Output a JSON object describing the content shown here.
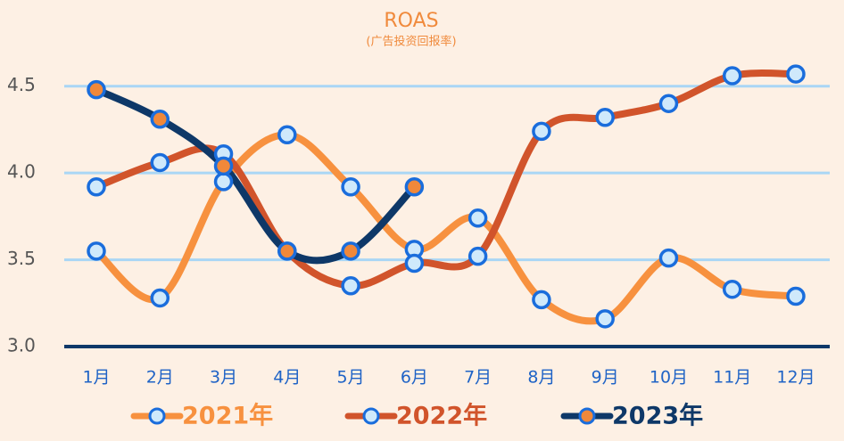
{
  "chart_data": {
    "type": "line",
    "title": "ROAS",
    "subtitle": "(广告投资回报率)",
    "categories": [
      "1月",
      "2月",
      "3月",
      "4月",
      "5月",
      "6月",
      "7月",
      "8月",
      "9月",
      "10月",
      "11月",
      "12月"
    ],
    "series": [
      {
        "name": "2021年",
        "color": "#f7913f",
        "marker_fill": "#cfe9fb",
        "values": [
          3.55,
          3.28,
          3.95,
          4.22,
          3.92,
          3.56,
          3.74,
          3.27,
          3.16,
          3.51,
          3.33,
          3.29
        ]
      },
      {
        "name": "2022年",
        "color": "#d1542b",
        "marker_fill": "#cfe9fb",
        "values": [
          3.92,
          4.06,
          4.11,
          3.55,
          3.35,
          3.48,
          3.52,
          4.24,
          4.32,
          4.4,
          4.56,
          4.57
        ]
      },
      {
        "name": "2023年",
        "color": "#0e3868",
        "marker_fill": "#f0883a",
        "values": [
          4.48,
          4.31,
          4.04,
          3.55,
          3.55,
          3.92,
          null,
          null,
          null,
          null,
          null,
          null
        ]
      }
    ],
    "ylim": [
      3,
      4.75
    ],
    "yticks": [
      {
        "value": 3,
        "label": "3.0"
      },
      3.5,
      {
        "value": 4,
        "label": "4.0"
      },
      4.5
    ],
    "grid": true,
    "legend": "bottom"
  }
}
